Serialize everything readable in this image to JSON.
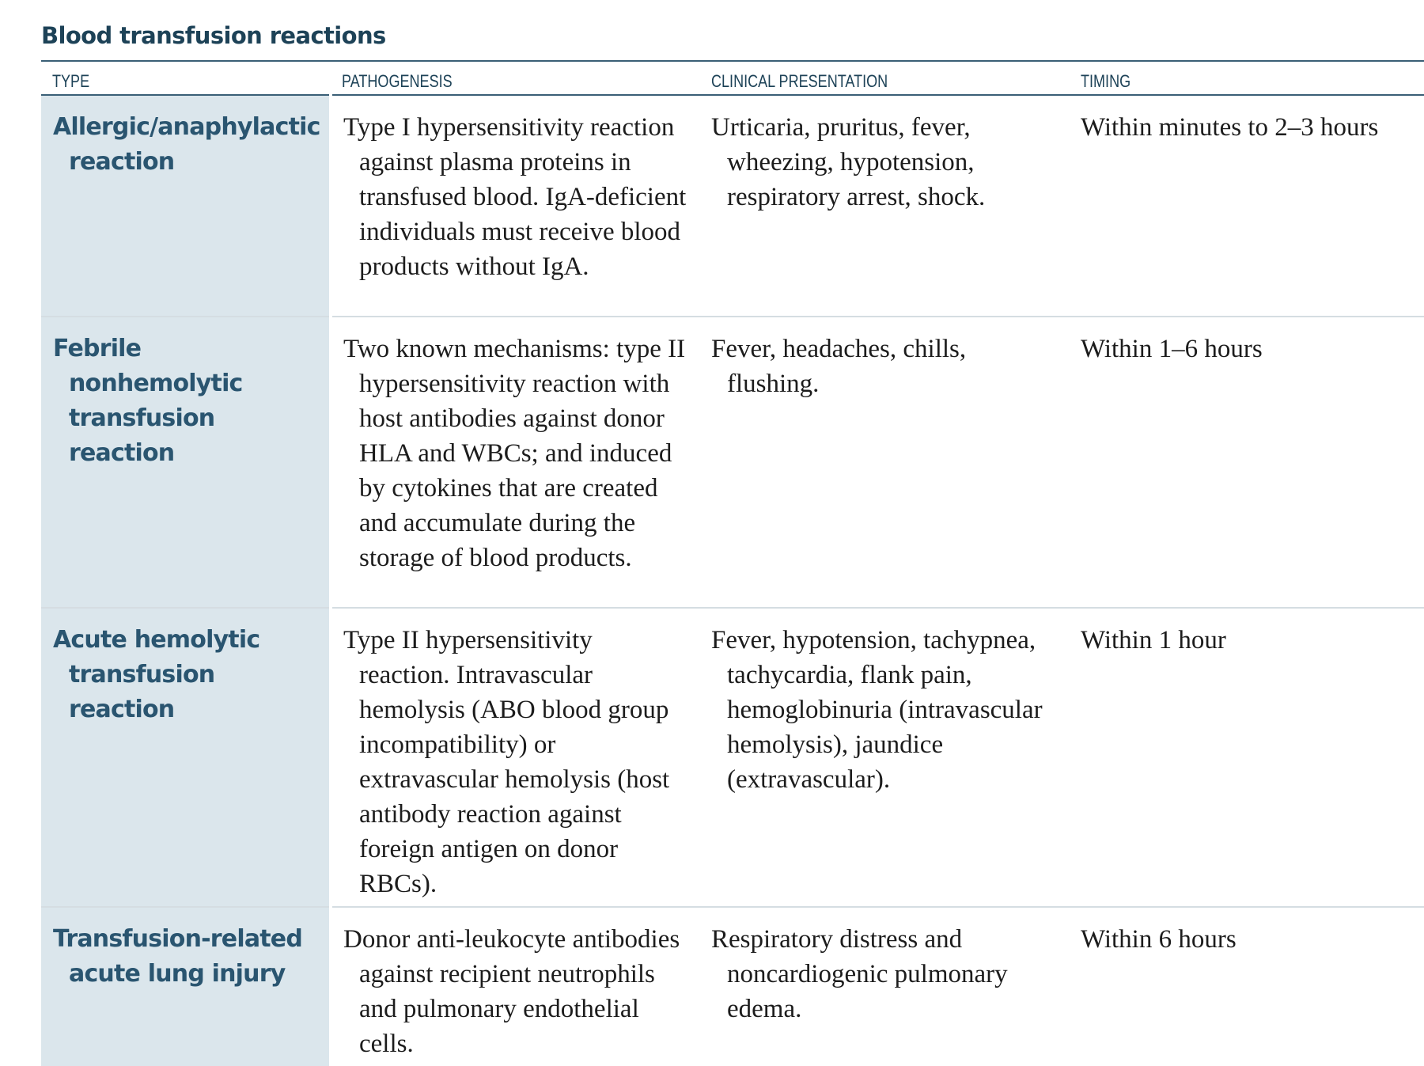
{
  "title": "Blood transfusion reactions",
  "columns": {
    "type": "TYPE",
    "pathogenesis": "PATHOGENESIS",
    "clinical": "CLINICAL PRESENTATION",
    "timing": "TIMING"
  },
  "rows": [
    {
      "type": "Allergic/anaphylactic reaction",
      "pathogenesis": "Type I hypersensitivity reaction against plasma proteins in transfused blood. IgA-deficient individuals must receive blood products without IgA.",
      "clinical": "Urticaria, pruritus, fever, wheezing, hypotension, respiratory arrest, shock.",
      "timing": "Within minutes to 2–3 hours"
    },
    {
      "type": "Febrile nonhemolytic transfusion reaction",
      "pathogenesis": "Two known mechanisms: type II hypersensitivity reaction with host antibodies against donor HLA and WBCs; and induced by cytokines that are created and accumulate during the storage of blood products.",
      "clinical": "Fever, headaches, chills, flushing.",
      "timing": "Within 1–6 hours"
    },
    {
      "type": "Acute hemolytic transfusion reaction",
      "pathogenesis": "Type II hypersensitivity reaction. Intravascular hemolysis (ABO blood group incompatibility) or extravascular hemolysis (host antibody reaction against foreign antigen on donor RBCs).",
      "clinical": "Fever, hypotension, tachypnea, tachycardia, flank pain, hemoglobinuria (intravascular hemolysis), jaundice (extravascular).",
      "timing": "Within 1 hour"
    },
    {
      "type": "Transfusion-related acute lung injury",
      "pathogenesis": "Donor anti-leukocyte antibodies against recipient neutrophils and pulmonary endothelial cells.",
      "clinical": "Respiratory distress and noncardiogenic pulmonary edema.",
      "timing": "Within 6 hours"
    }
  ],
  "colors": {
    "heading": "#1d4257",
    "type_text": "#2a5570",
    "type_background": "#dbe6ec",
    "rule": "#3a5f76",
    "row_divider": "#d5dde2",
    "body_text": "#1c1c1c"
  }
}
